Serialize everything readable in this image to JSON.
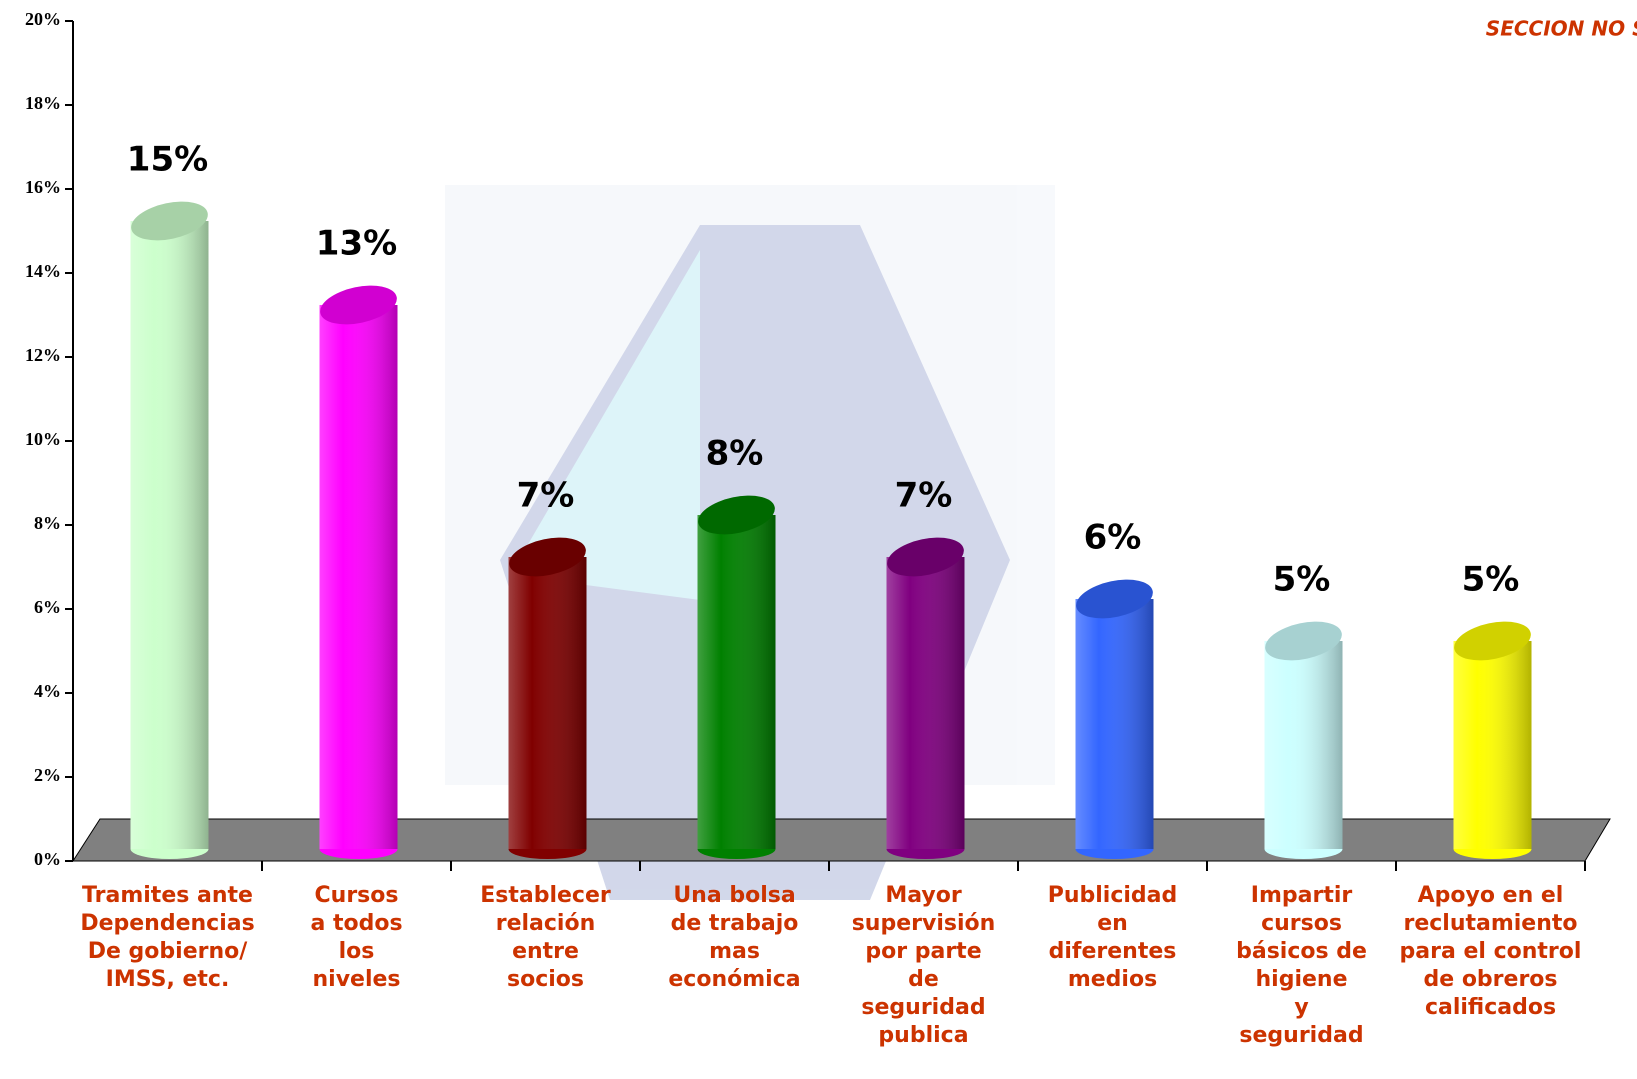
{
  "chart_data": {
    "type": "bar3d",
    "title": "SECCION NO SOCIOS",
    "categories": [
      "Tramites ante\nDependencias\nDe gobierno/\nIMSS, etc.",
      "Cursos\na todos\nlos\nniveles",
      "Establecer\nrelación\nentre\nsocios",
      "Una bolsa\nde trabajo\nmas\neconómica",
      "Mayor\nsupervisión\npor parte\nde\nseguridad\npublica",
      "Publicidad\nen\ndiferentes\nmedios",
      "Impartir\ncursos\nbásicos de\nhigiene\ny\nseguridad",
      "Apoyo en el\nreclutamiento\npara el control\nde obreros\ncalificados"
    ],
    "values": [
      15,
      13,
      7,
      8,
      7,
      6,
      5,
      5
    ],
    "value_labels": [
      "15%",
      "13%",
      "7%",
      "8%",
      "7%",
      "6%",
      "5%",
      "5%"
    ],
    "colors": [
      "#ccffcc",
      "#ff00ff",
      "#800000",
      "#008000",
      "#800080",
      "#3366ff",
      "#ccffff",
      "#ffff00"
    ],
    "ylim": [
      0,
      20
    ],
    "yticks": [
      {
        "value": 0,
        "label": "0%"
      },
      {
        "value": 2,
        "label": "2%"
      },
      {
        "value": 4,
        "label": "4%"
      },
      {
        "value": 6,
        "label": "6%"
      },
      {
        "value": 8,
        "label": "8%"
      },
      {
        "value": 10,
        "label": "10%"
      },
      {
        "value": 12,
        "label": "12%"
      },
      {
        "value": 14,
        "label": "14%"
      },
      {
        "value": 16,
        "label": "16%"
      },
      {
        "value": 18,
        "label": "18%"
      },
      {
        "value": 20,
        "label": "20%"
      }
    ]
  }
}
